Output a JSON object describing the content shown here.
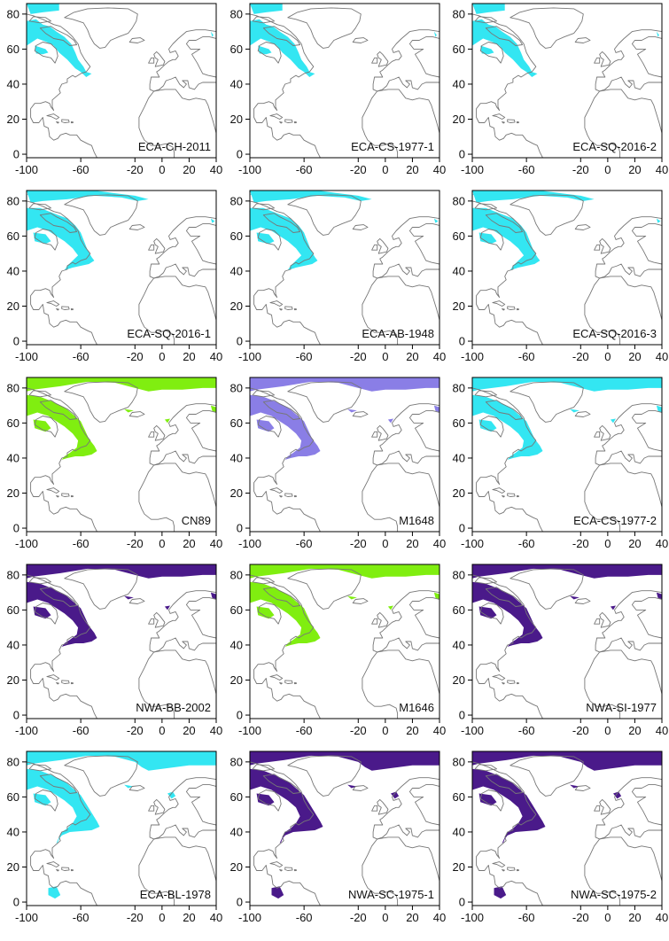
{
  "x_ticks": [
    "-100",
    "-60",
    "-20",
    "0",
    "20",
    "40"
  ],
  "y_ticks": [
    "0",
    "20",
    "40",
    "60",
    "80"
  ],
  "colors": {
    "cyan": "#33e6f2",
    "green": "#80ee10",
    "periwinkle": "#8a7ee6",
    "purple": "#4a1a8a",
    "coastline": "#777777"
  },
  "panels": [
    {
      "label": "ECA-CH-2011",
      "color": "cyan",
      "extent": "small"
    },
    {
      "label": "ECA-CS-1977-1",
      "color": "cyan",
      "extent": "small"
    },
    {
      "label": "ECA-SQ-2016-2",
      "color": "cyan",
      "extent": "small"
    },
    {
      "label": "ECA-SQ-2016-1",
      "color": "cyan",
      "extent": "medium"
    },
    {
      "label": "ECA-AB-1948",
      "color": "cyan",
      "extent": "medium"
    },
    {
      "label": "ECA-SQ-2016-3",
      "color": "cyan",
      "extent": "medium"
    },
    {
      "label": "CN89",
      "color": "green",
      "extent": "large"
    },
    {
      "label": "M1648",
      "color": "periwinkle",
      "extent": "large"
    },
    {
      "label": "ECA-CS-1977-2",
      "color": "cyan",
      "extent": "large"
    },
    {
      "label": "NWA-BB-2002",
      "color": "purple",
      "extent": "large"
    },
    {
      "label": "M1646",
      "color": "green",
      "extent": "large"
    },
    {
      "label": "NWA-SI-1977",
      "color": "purple",
      "extent": "large"
    },
    {
      "label": "ECA-BL-1978",
      "color": "cyan",
      "extent": "wide"
    },
    {
      "label": "NWA-SC-1975-1",
      "color": "purple",
      "extent": "wide"
    },
    {
      "label": "NWA-SC-1975-2",
      "color": "purple",
      "extent": "wide"
    }
  ]
}
